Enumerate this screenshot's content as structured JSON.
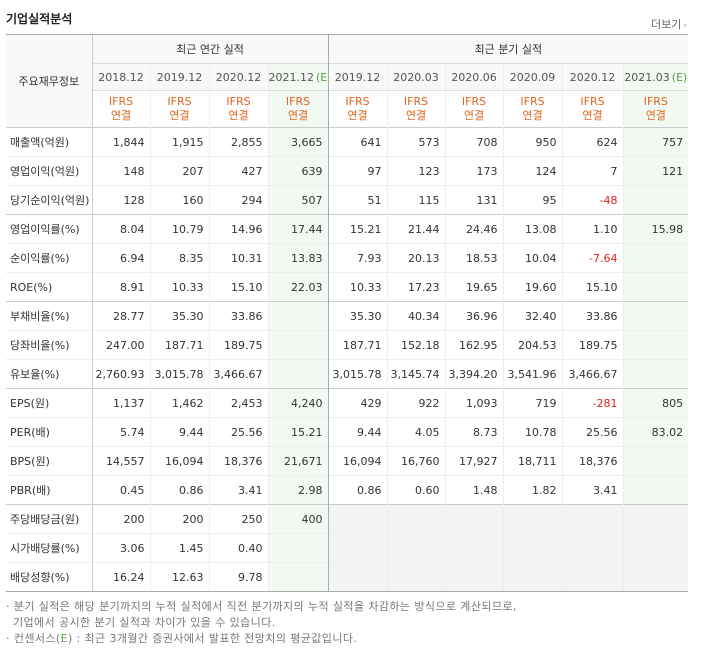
{
  "title": "기업실적분석",
  "more_label": "더보기",
  "header": {
    "label": "주요재무정보",
    "annual_group": "최근 연간 실적",
    "quarter_group": "최근 분기 실적",
    "annual_periods": [
      "2018.12",
      "2019.12",
      "2020.12",
      "2021.12"
    ],
    "quarter_periods": [
      "2019.12",
      "2020.03",
      "2020.06",
      "2020.09",
      "2020.12",
      "2021.03"
    ],
    "estimate_mark": "(E)",
    "ifrs_line1": "IFRS",
    "ifrs_line2": "연결"
  },
  "rows": [
    {
      "label": "매출액(억원)",
      "annual": [
        "1,844",
        "1,915",
        "2,855",
        "3,665"
      ],
      "quarter": [
        "641",
        "573",
        "708",
        "950",
        "624",
        "757"
      ]
    },
    {
      "label": "영업이익(억원)",
      "annual": [
        "148",
        "207",
        "427",
        "639"
      ],
      "quarter": [
        "97",
        "123",
        "173",
        "124",
        "7",
        "121"
      ]
    },
    {
      "label": "당기순이익(억원)",
      "annual": [
        "128",
        "160",
        "294",
        "507"
      ],
      "quarter": [
        "51",
        "115",
        "131",
        "95",
        "-48",
        ""
      ]
    },
    {
      "label": "영업이익률(%)",
      "annual": [
        "8.04",
        "10.79",
        "14.96",
        "17.44"
      ],
      "quarter": [
        "15.21",
        "21.44",
        "24.46",
        "13.08",
        "1.10",
        "15.98"
      ]
    },
    {
      "label": "순이익률(%)",
      "annual": [
        "6.94",
        "8.35",
        "10.31",
        "13.83"
      ],
      "quarter": [
        "7.93",
        "20.13",
        "18.53",
        "10.04",
        "-7.64",
        ""
      ]
    },
    {
      "label": "ROE(%)",
      "annual": [
        "8.91",
        "10.33",
        "15.10",
        "22.03"
      ],
      "quarter": [
        "10.33",
        "17.23",
        "19.65",
        "19.60",
        "15.10",
        ""
      ]
    },
    {
      "label": "부채비율(%)",
      "annual": [
        "28.77",
        "35.30",
        "33.86",
        ""
      ],
      "quarter": [
        "35.30",
        "40.34",
        "36.96",
        "32.40",
        "33.86",
        ""
      ]
    },
    {
      "label": "당좌비율(%)",
      "annual": [
        "247.00",
        "187.71",
        "189.75",
        ""
      ],
      "quarter": [
        "187.71",
        "152.18",
        "162.95",
        "204.53",
        "189.75",
        ""
      ]
    },
    {
      "label": "유보율(%)",
      "annual": [
        "2,760.93",
        "3,015.78",
        "3,466.67",
        ""
      ],
      "quarter": [
        "3,015.78",
        "3,145.74",
        "3,394.20",
        "3,541.96",
        "3,466.67",
        ""
      ]
    },
    {
      "label": "EPS(원)",
      "annual": [
        "1,137",
        "1,462",
        "2,453",
        "4,240"
      ],
      "quarter": [
        "429",
        "922",
        "1,093",
        "719",
        "-281",
        "805"
      ]
    },
    {
      "label": "PER(배)",
      "annual": [
        "5.74",
        "9.44",
        "25.56",
        "15.21"
      ],
      "quarter": [
        "9.44",
        "4.05",
        "8.73",
        "10.78",
        "25.56",
        "83.02"
      ]
    },
    {
      "label": "BPS(원)",
      "annual": [
        "14,557",
        "16,094",
        "18,376",
        "21,671"
      ],
      "quarter": [
        "16,094",
        "16,760",
        "17,927",
        "18,711",
        "18,376",
        ""
      ]
    },
    {
      "label": "PBR(배)",
      "annual": [
        "0.45",
        "0.86",
        "3.41",
        "2.98"
      ],
      "quarter": [
        "0.86",
        "0.60",
        "1.48",
        "1.82",
        "3.41",
        ""
      ]
    },
    {
      "label": "주당배당금(원)",
      "annual": [
        "200",
        "200",
        "250",
        "400"
      ],
      "quarter": [
        "",
        "",
        "",
        "",
        "",
        ""
      ]
    },
    {
      "label": "시가배당률(%)",
      "annual": [
        "3.06",
        "1.45",
        "0.40",
        ""
      ],
      "quarter": [
        "",
        "",
        "",
        "",
        "",
        ""
      ]
    },
    {
      "label": "배당성향(%)",
      "annual": [
        "16.24",
        "12.63",
        "9.78",
        ""
      ],
      "quarter": [
        "",
        "",
        "",
        "",
        "",
        ""
      ]
    }
  ],
  "notes": {
    "line1": "· 분기 실적은 해당 분기까지의 누적 실적에서 직전 분기까지의 누적 실적을 차감하는 방식으로 계산되므로,",
    "line2": "기업에서 공시한 분기 실적과 차이가 있을 수 있습니다.",
    "line3_prefix": "· 컨센서스(",
    "line3_mark": "E",
    "line3_suffix": ") : 최근 3개월간 증권사에서 발표한 전망치의 평균값입니다."
  }
}
